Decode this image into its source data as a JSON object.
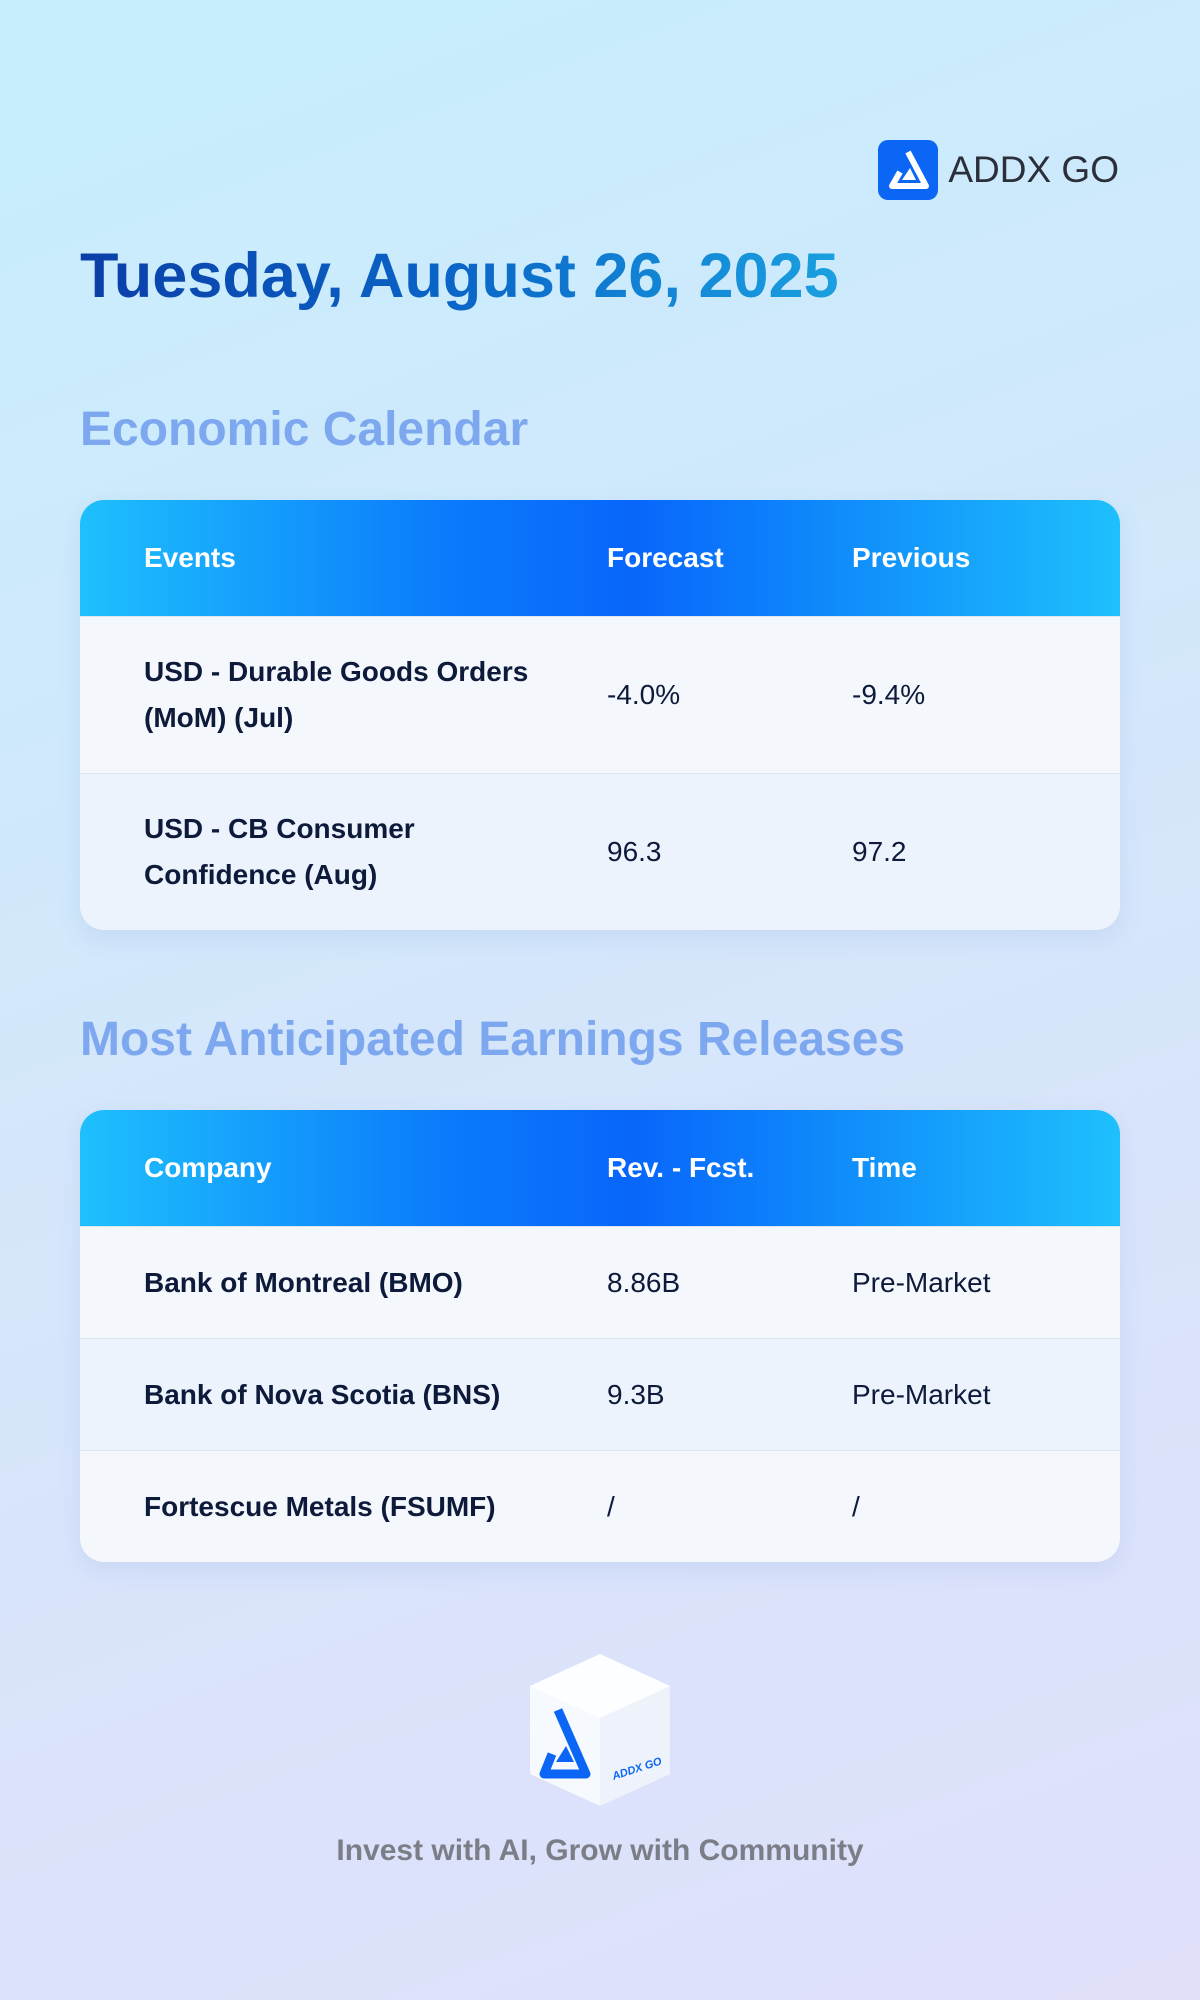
{
  "header": {
    "brand": "ADDX GO",
    "date": "Tuesday, August 26, 2025"
  },
  "sections": [
    {
      "title": "Economic Calendar",
      "table": {
        "columns": [
          "Events",
          "Forecast",
          "Previous"
        ],
        "rows": [
          [
            "USD - Durable Goods Orders (MoM) (Jul)",
            "-4.0%",
            "-9.4%"
          ],
          [
            "USD - CB Consumer Confidence (Aug)",
            "96.3",
            "97.2"
          ]
        ]
      }
    },
    {
      "title": "Most Anticipated Earnings Releases",
      "table": {
        "columns": [
          "Company",
          "Rev. - Fcst.",
          "Time"
        ],
        "rows": [
          [
            "Bank of Montreal (BMO)",
            "8.86B",
            "Pre-Market"
          ],
          [
            "Bank of Nova Scotia (BNS)",
            "9.3B",
            "Pre-Market"
          ],
          [
            "Fortescue Metals (FSUMF)",
            "/",
            "/"
          ]
        ]
      }
    }
  ],
  "footer": {
    "logo_label": "ADDX GO",
    "tagline": "Invest with AI, Grow with Community"
  }
}
